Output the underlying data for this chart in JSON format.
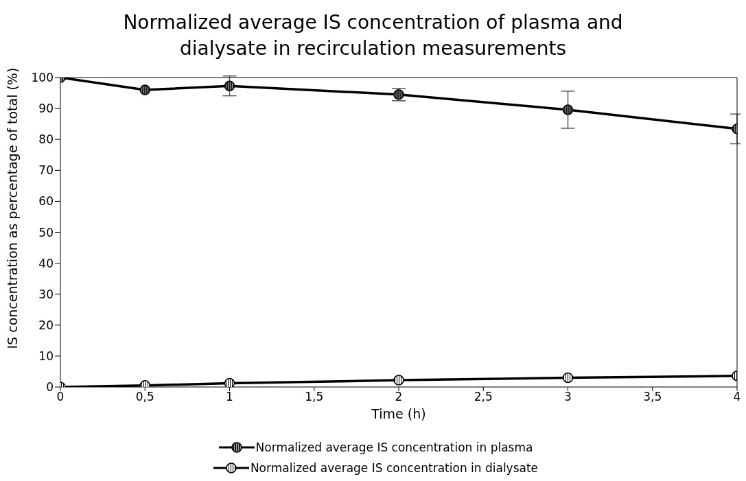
{
  "chart_data": {
    "type": "line",
    "title": "Normalized average IS concentration of plasma and dialysate in recirculation measurements",
    "xlabel": "Time (h)",
    "ylabel": "IS concentration as percentage of total (%)",
    "x": [
      0,
      0.5,
      1,
      2,
      3,
      4
    ],
    "series": [
      {
        "name": "Normalized average IS concentration in plasma",
        "color": "#000000",
        "values": [
          100,
          96,
          97.3,
          94.5,
          89.6,
          83.4
        ],
        "errors": [
          null,
          null,
          3.2,
          2,
          6,
          4.8
        ]
      },
      {
        "name": "Normalized average IS concentration in dialysate",
        "color": "#000000",
        "values": [
          0,
          0.5,
          1.2,
          2.2,
          3,
          3.6
        ]
      }
    ],
    "xlim": [
      0,
      4
    ],
    "xticks": [
      0,
      {
        "value": 0.5,
        "label": "0,5"
      },
      1,
      {
        "value": 1.5,
        "label": "1,5"
      },
      2,
      {
        "value": 2.5,
        "label": "2,5"
      },
      3,
      {
        "value": 3.5,
        "label": "3,5"
      },
      4
    ],
    "ylim": [
      0,
      100
    ],
    "yticks": [
      0,
      10,
      20,
      30,
      40,
      50,
      60,
      70,
      80,
      90,
      100
    ],
    "legend": "bottom",
    "marker": "circle",
    "line_style": "solid"
  }
}
